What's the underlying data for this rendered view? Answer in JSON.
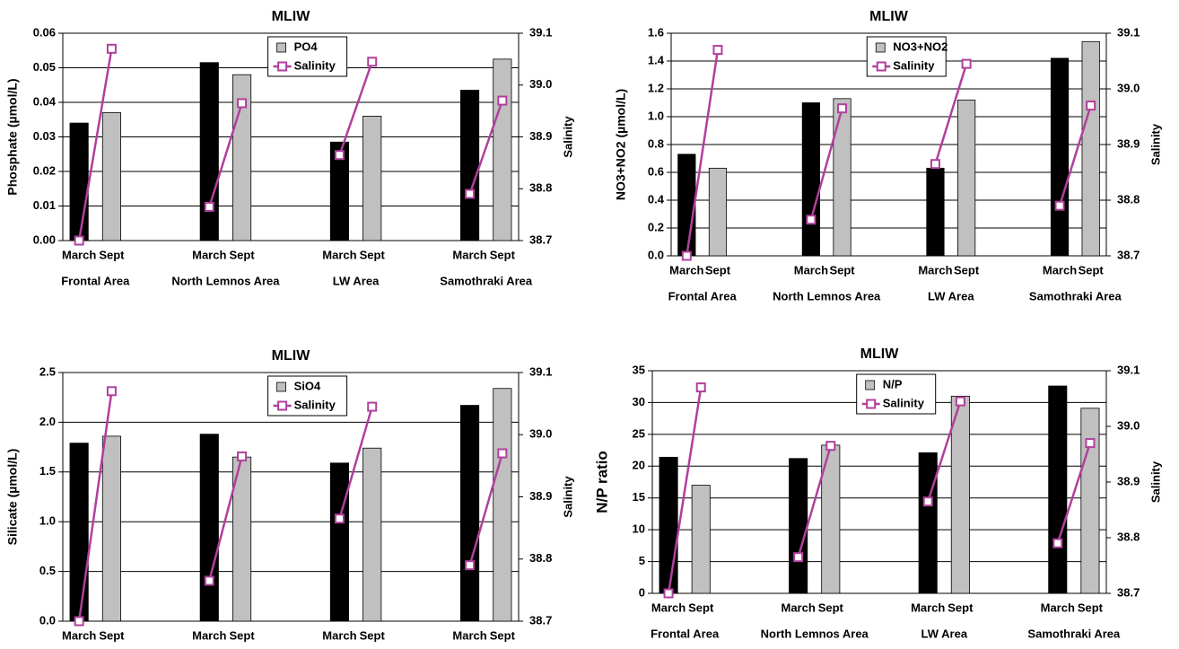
{
  "chart_data": [
    {
      "type": "bar",
      "title": "MLIW",
      "ylabel": "Phosphate  (µmol/L)",
      "y2label": "Salinity",
      "categories": [
        "March",
        "Sept",
        null,
        null,
        "March",
        "Sept",
        null,
        null,
        "March",
        "Sept",
        null,
        null,
        "March",
        "Sept"
      ],
      "groups": [
        "Frontal Area",
        "North Lemnos Area",
        "LW Area",
        "Samothraki Area"
      ],
      "series": [
        {
          "name": "PO4",
          "color": "#c0c0c0",
          "colors": [
            "#000000",
            "#c0c0c0",
            null,
            null,
            "#000000",
            "#c0c0c0",
            null,
            null,
            "#000000",
            "#c0c0c0",
            null,
            null,
            "#000000",
            "#c0c0c0"
          ],
          "values": [
            0.034,
            0.037,
            null,
            null,
            0.0515,
            0.048,
            null,
            null,
            0.0285,
            0.036,
            null,
            null,
            0.0435,
            0.0525
          ]
        },
        {
          "name": "Salinity",
          "type": "line",
          "axis": "y2",
          "color": "#b0409c",
          "values": [
            38.7,
            39.07,
            null,
            null,
            38.765,
            38.965,
            null,
            null,
            38.865,
            39.045,
            null,
            null,
            38.79,
            38.97
          ]
        }
      ],
      "ylim": [
        0,
        0.06
      ],
      "yticks": [
        {
          "value": 0,
          "label": "0.00"
        },
        {
          "value": 0.01,
          "label": "0.01"
        },
        {
          "value": 0.02,
          "label": "0.02"
        },
        {
          "value": 0.03,
          "label": "0.03"
        },
        {
          "value": 0.04,
          "label": "0.04"
        },
        {
          "value": 0.05,
          "label": "0.05"
        },
        {
          "value": 0.06,
          "label": "0.06"
        }
      ],
      "y2lim": [
        38.7,
        39.1
      ],
      "y2ticks": [
        38.7,
        38.8,
        38.9,
        {
          "value": 39,
          "label": "39.0"
        },
        39.1
      ],
      "grid": true
    },
    {
      "type": "bar",
      "title": "MLIW",
      "ylabel": "NO3+NO2  (µmol/L)",
      "y2label": "Salinity",
      "categories": [
        "March",
        "Sept",
        null,
        null,
        "March",
        "Sept",
        null,
        null,
        "March",
        "Sept",
        null,
        null,
        "March",
        "Sept"
      ],
      "groups": [
        "Frontal Area",
        "North Lemnos Area",
        "LW Area",
        "Samothraki Area"
      ],
      "series": [
        {
          "name": "NO3+NO2",
          "color": "#c0c0c0",
          "colors": [
            "#000000",
            "#c0c0c0",
            null,
            null,
            "#000000",
            "#c0c0c0",
            null,
            null,
            "#000000",
            "#c0c0c0",
            null,
            null,
            "#000000",
            "#c0c0c0"
          ],
          "values": [
            0.73,
            0.63,
            null,
            null,
            1.1,
            1.13,
            null,
            null,
            0.63,
            1.12,
            null,
            null,
            1.42,
            1.54
          ]
        },
        {
          "name": "Salinity",
          "type": "line",
          "axis": "y2",
          "color": "#b0409c",
          "values": [
            38.7,
            39.07,
            null,
            null,
            38.765,
            38.965,
            null,
            null,
            38.865,
            39.045,
            null,
            null,
            38.79,
            38.97
          ]
        }
      ],
      "ylim": [
        0,
        1.6
      ],
      "yticks": [
        {
          "value": 0,
          "label": "0.0"
        },
        0.2,
        0.4,
        0.6,
        0.8,
        {
          "value": 1,
          "label": "1.0"
        },
        1.2,
        1.4,
        1.6
      ],
      "y2lim": [
        38.7,
        39.1
      ],
      "y2ticks": [
        38.7,
        38.8,
        38.9,
        {
          "value": 39,
          "label": "39.0"
        },
        39.1
      ],
      "grid": true
    },
    {
      "type": "bar",
      "title": "MLIW",
      "ylabel": "Silicate  (µmol/L)",
      "y2label": "Salinity",
      "categories": [
        "March",
        "Sept",
        null,
        null,
        "March",
        "Sept",
        null,
        null,
        "March",
        "Sept",
        null,
        null,
        "March",
        "Sept"
      ],
      "groups": [
        "Frontal Area",
        "North Lemnos Area",
        "LW Area",
        "Samothraki Area"
      ],
      "series": [
        {
          "name": "SiO4",
          "color": "#c0c0c0",
          "colors": [
            "#000000",
            "#c0c0c0",
            null,
            null,
            "#000000",
            "#c0c0c0",
            null,
            null,
            "#000000",
            "#c0c0c0",
            null,
            null,
            "#000000",
            "#c0c0c0"
          ],
          "values": [
            1.79,
            1.86,
            null,
            null,
            1.88,
            1.65,
            null,
            null,
            1.59,
            1.74,
            null,
            null,
            2.17,
            2.34
          ]
        },
        {
          "name": "Salinity",
          "type": "line",
          "axis": "y2",
          "color": "#b0409c",
          "values": [
            38.7,
            39.07,
            null,
            null,
            38.765,
            38.965,
            null,
            null,
            38.865,
            39.045,
            null,
            null,
            38.79,
            38.97
          ]
        }
      ],
      "ylim": [
        0,
        2.5
      ],
      "yticks": [
        {
          "value": 0,
          "label": "0.0"
        },
        0.5,
        {
          "value": 1,
          "label": "1.0"
        },
        1.5,
        {
          "value": 2,
          "label": "2.0"
        },
        2.5
      ],
      "y2lim": [
        38.7,
        39.1
      ],
      "y2ticks": [
        38.7,
        38.8,
        38.9,
        {
          "value": 39,
          "label": "39.0"
        },
        39.1
      ],
      "grid": true
    },
    {
      "type": "bar",
      "title": "MLIW",
      "ylabel": "N/P  ratio",
      "y2label": "Salinity",
      "categories": [
        "March",
        "Sept",
        null,
        null,
        "March",
        "Sept",
        null,
        null,
        "March",
        "Sept",
        null,
        null,
        "March",
        "Sept"
      ],
      "groups": [
        "Frontal Area",
        "North Lemnos Area",
        "LW Area",
        "Samothraki Area"
      ],
      "series": [
        {
          "name": "N/P",
          "color": "#c0c0c0",
          "colors": [
            "#000000",
            "#c0c0c0",
            null,
            null,
            "#000000",
            "#c0c0c0",
            null,
            null,
            "#000000",
            "#c0c0c0",
            null,
            null,
            "#000000",
            "#c0c0c0"
          ],
          "values": [
            21.4,
            17.0,
            null,
            null,
            21.2,
            23.3,
            null,
            null,
            22.1,
            31.0,
            null,
            null,
            32.6,
            29.1
          ]
        },
        {
          "name": "Salinity",
          "type": "line",
          "axis": "y2",
          "color": "#b0409c",
          "values": [
            38.7,
            39.07,
            null,
            null,
            38.765,
            38.965,
            null,
            null,
            38.865,
            39.045,
            null,
            null,
            38.79,
            38.97
          ]
        }
      ],
      "ylim": [
        0,
        35
      ],
      "yticks": [
        0,
        5,
        10,
        15,
        20,
        25,
        30,
        35
      ],
      "y2lim": [
        38.7,
        39.1
      ],
      "y2ticks": [
        38.7,
        38.8,
        38.9,
        {
          "value": 39,
          "label": "39.0"
        },
        39.1
      ],
      "grid": true
    }
  ]
}
